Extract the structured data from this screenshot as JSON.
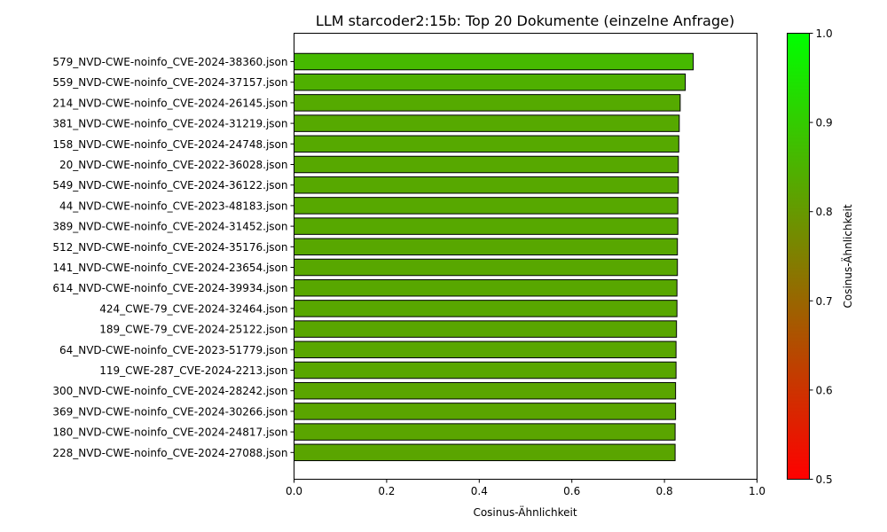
{
  "chart_data": {
    "type": "bar",
    "orientation": "horizontal",
    "title": "LLM starcoder2:15b: Top 20 Dokumente (einzelne Anfrage)",
    "xlabel": "Cosinus-Ähnlichkeit",
    "ylabel": "",
    "xlim": [
      0,
      1
    ],
    "xticks": [
      "0.0",
      "0.2",
      "0.4",
      "0.6",
      "0.8",
      "1.0"
    ],
    "grid": false,
    "categories": [
      "579_NVD-CWE-noinfo_CVE-2024-38360.json",
      "559_NVD-CWE-noinfo_CVE-2024-37157.json",
      "214_NVD-CWE-noinfo_CVE-2024-26145.json",
      "381_NVD-CWE-noinfo_CVE-2024-31219.json",
      "158_NVD-CWE-noinfo_CVE-2024-24748.json",
      "20_NVD-CWE-noinfo_CVE-2022-36028.json",
      "549_NVD-CWE-noinfo_CVE-2024-36122.json",
      "44_NVD-CWE-noinfo_CVE-2023-48183.json",
      "389_NVD-CWE-noinfo_CVE-2024-31452.json",
      "512_NVD-CWE-noinfo_CVE-2024-35176.json",
      "141_NVD-CWE-noinfo_CVE-2024-23654.json",
      "614_NVD-CWE-noinfo_CVE-2024-39934.json",
      "424_CWE-79_CVE-2024-32464.json",
      "189_CWE-79_CVE-2024-25122.json",
      "64_NVD-CWE-noinfo_CVE-2023-51779.json",
      "119_CWE-287_CVE-2024-2213.json",
      "300_NVD-CWE-noinfo_CVE-2024-28242.json",
      "369_NVD-CWE-noinfo_CVE-2024-30266.json",
      "180_NVD-CWE-noinfo_CVE-2024-24817.json",
      "228_NVD-CWE-noinfo_CVE-2024-27088.json"
    ],
    "values": [
      0.862,
      0.845,
      0.834,
      0.832,
      0.831,
      0.83,
      0.83,
      0.829,
      0.829,
      0.828,
      0.828,
      0.827,
      0.827,
      0.826,
      0.825,
      0.825,
      0.824,
      0.824,
      0.823,
      0.823
    ],
    "colorbar": {
      "label": "Cosinus-Ähnlichkeit",
      "range": [
        0.5,
        1.0
      ],
      "ticks": [
        "0.5",
        "0.6",
        "0.7",
        "0.8",
        "0.9",
        "1.0"
      ],
      "color_low": "#ff0000",
      "color_high": "#00ff00"
    },
    "bar_edge_color": "#000000"
  }
}
